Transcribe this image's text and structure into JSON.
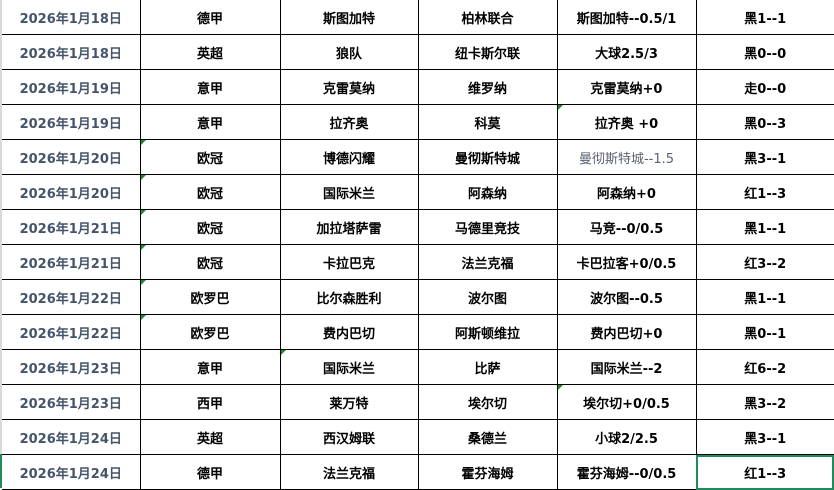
{
  "rows": [
    {
      "date": "2026年1月18日",
      "league": "德甲",
      "home": "斯图加特",
      "away": "柏林联合",
      "handicap": "斯图加特--0.5/1",
      "result": "黑1--1"
    },
    {
      "date": "2026年1月18日",
      "league": "英超",
      "home": "狼队",
      "away": "纽卡斯尔联",
      "handicap": "大球2.5/3",
      "result": "黑0--0"
    },
    {
      "date": "2026年1月19日",
      "league": "意甲",
      "home": "克雷莫纳",
      "away": "维罗纳",
      "handicap": "克雷莫纳+0",
      "result": "走0--0"
    },
    {
      "date": "2026年1月19日",
      "league": "意甲",
      "home": "拉齐奥",
      "away": "科莫",
      "handicap": "拉齐奥 +0",
      "result": "黑0--3"
    },
    {
      "date": "2026年1月20日",
      "league": "欧冠",
      "home": "博德闪耀",
      "away": "曼彻斯特城",
      "handicap": "曼彻斯特城--1.5",
      "result": "黑3--1"
    },
    {
      "date": "2026年1月20日",
      "league": "欧冠",
      "home": "国际米兰",
      "away": "阿森纳",
      "handicap": "阿森纳+0",
      "result": "红1--3"
    },
    {
      "date": "2026年1月21日",
      "league": "欧冠",
      "home": "加拉塔萨雷",
      "away": "马德里竞技",
      "handicap": "马竞--0/0.5",
      "result": "黑1--1"
    },
    {
      "date": "2026年1月21日",
      "league": "欧冠",
      "home": "卡拉巴克",
      "away": "法兰克福",
      "handicap": "卡巴拉客+0/0.5",
      "result": "红3--2"
    },
    {
      "date": "2026年1月22日",
      "league": "欧罗巴",
      "home": "比尔森胜利",
      "away": "波尔图",
      "handicap": "波尔图--0.5",
      "result": "黑1--1"
    },
    {
      "date": "2026年1月22日",
      "league": "欧罗巴",
      "home": "费内巴切",
      "away": "阿斯顿维拉",
      "handicap": "费内巴切+0",
      "result": "黑0--1"
    },
    {
      "date": "2026年1月23日",
      "league": "意甲",
      "home": "国际米兰",
      "away": "比萨",
      "handicap": "国际米兰--2",
      "result": "红6--2"
    },
    {
      "date": "2026年1月23日",
      "league": "西甲",
      "home": "莱万特",
      "away": "埃尔切",
      "handicap": "埃尔切+0/0.5",
      "result": "黑3--2"
    },
    {
      "date": "2026年1月24日",
      "league": "英超",
      "home": "西汉姆联",
      "away": "桑德兰",
      "handicap": "小球2/2.5",
      "result": "黑3--1"
    },
    {
      "date": "2026年1月24日",
      "league": "德甲",
      "home": "法兰克福",
      "away": "霍芬海姆",
      "handicap": "霍芬海姆--0/0.5",
      "result": "红1--3"
    }
  ],
  "colors": {
    "date_text": "#44546a",
    "selection": "#1e8c5a",
    "comment_marker": "#1f8a2a"
  }
}
